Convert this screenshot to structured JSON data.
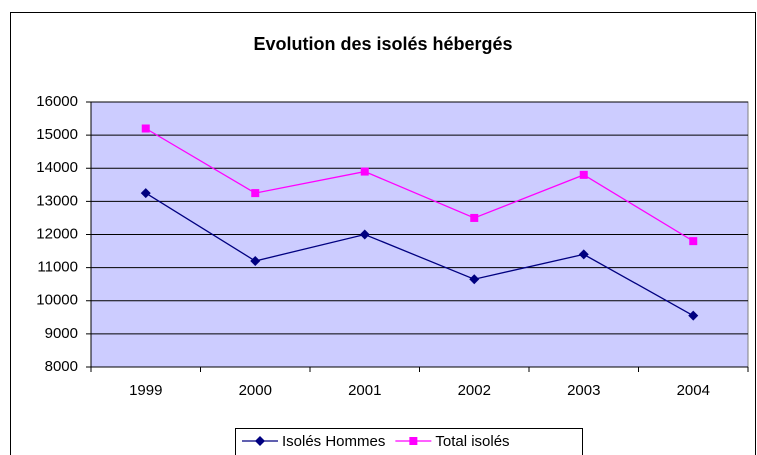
{
  "chart_data": {
    "type": "line",
    "title": "Evolution des isolés hébergés",
    "categories": [
      "1999",
      "2000",
      "2001",
      "2002",
      "2003",
      "2004"
    ],
    "series": [
      {
        "name": "Isolés Hommes",
        "color": "#000080",
        "marker": "diamond",
        "values": [
          13250,
          11200,
          12000,
          10650,
          11400,
          9550
        ]
      },
      {
        "name": "Total isolés",
        "color": "#ff00ff",
        "marker": "square",
        "values": [
          15200,
          13250,
          13900,
          12500,
          13800,
          11800
        ]
      }
    ],
    "ylim": [
      8000,
      16000
    ],
    "yticks": [
      8000,
      9000,
      10000,
      11000,
      12000,
      13000,
      14000,
      15000,
      16000
    ],
    "grid": true,
    "legend": "bottom"
  }
}
